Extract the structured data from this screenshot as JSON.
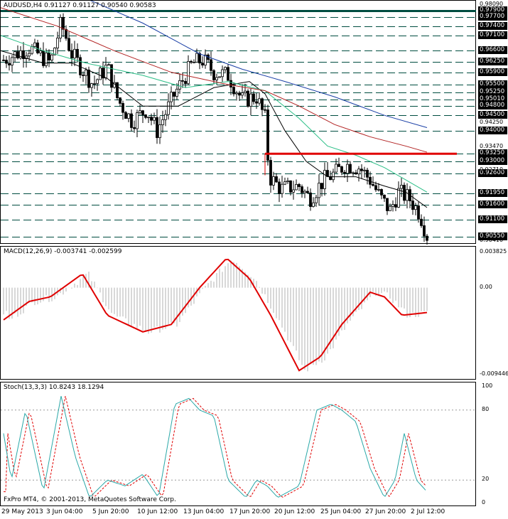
{
  "symbol_header": "AUDUSD,H4  0.91127 0.91127 0.90540 0.90583",
  "macd_header": "MACD(12,26,9) -0.003741 -0.002599",
  "stoch_header": "Stoch(13,3,3) 10.8243 18.1294",
  "copyright": "FxPro MT4, © 2001-2013, MetaQuotes Software Corp.",
  "price_ticks": [
    "0.98090",
    "0.94250",
    "0.93470",
    "0.92710",
    "0.90410"
  ],
  "price_levels": [
    {
      "label": "0.97900",
      "value": 0.979
    },
    {
      "label": "0.97700",
      "value": 0.977
    },
    {
      "label": "0.97400",
      "value": 0.974
    },
    {
      "label": "0.97100",
      "value": 0.971
    },
    {
      "label": "0.96600",
      "value": 0.966
    },
    {
      "label": "0.96250",
      "value": 0.9625
    },
    {
      "label": "0.95900",
      "value": 0.959
    },
    {
      "label": "0.95500",
      "value": 0.955
    },
    {
      "label": "0.95250",
      "value": 0.9525
    },
    {
      "label": "0.95010",
      "value": 0.9501
    },
    {
      "label": "0.94800",
      "value": 0.948
    },
    {
      "label": "0.94500",
      "value": 0.945
    },
    {
      "label": "0.94000",
      "value": 0.94
    },
    {
      "label": "0.93250",
      "value": 0.9325
    },
    {
      "label": "0.93000",
      "value": 0.93
    },
    {
      "label": "0.92600",
      "value": 0.926
    },
    {
      "label": "0.91950",
      "value": 0.9195
    },
    {
      "label": "0.91600",
      "value": 0.916
    },
    {
      "label": "0.91100",
      "value": 0.911
    },
    {
      "label": "0.90550",
      "value": 0.9055
    }
  ],
  "macd_ticks": [
    "0.003825",
    "0.00",
    "-0.009446"
  ],
  "stoch_ticks": [
    "100",
    "80",
    "20",
    "0"
  ],
  "time_labels": [
    "29 May 2013",
    "3 Jun 04:00",
    "5 Jun 20:00",
    "10 Jun 12:00",
    "13 Jun 04:00",
    "17 Jun 20:00",
    "20 Jun 12:00",
    "25 Jun 04:00",
    "27 Jun 20:00",
    "2 Jul 12:00"
  ],
  "colors": {
    "candle": "#000000",
    "level_line": "#004d40",
    "resistance": "#e00000",
    "ma_fast": "#000000",
    "ma_mid": "#2bbf87",
    "ma_slow": "#b22222",
    "ma_long": "#1a3fa6",
    "macd_signal": "#e00000",
    "macd_hist": "#b0b0b0",
    "stoch_main": "#2aa8a8",
    "stoch_signal": "#e00000"
  },
  "chart_data": [
    {
      "type": "candlestick",
      "title": "AUDUSD,H4",
      "ylim": [
        0.9041,
        0.9809
      ],
      "resistance_level": 0.9325,
      "last_price": 0.90583
    },
    {
      "type": "line",
      "title": "MACD(12,26,9)",
      "ylim": [
        -0.009446,
        0.003825
      ]
    },
    {
      "type": "line",
      "title": "Stoch(13,3,3)",
      "ylim": [
        0,
        100
      ],
      "levels": [
        20,
        80
      ]
    }
  ]
}
